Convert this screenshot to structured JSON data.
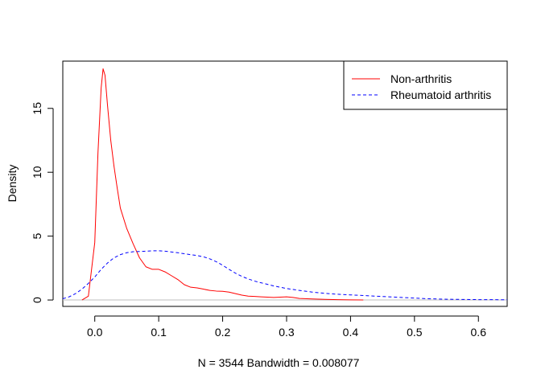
{
  "chart_data": {
    "type": "line",
    "title": "",
    "xlabel": "N = 3544   Bandwidth = 0.008077",
    "ylabel": "Density",
    "xlim": [
      -0.05,
      0.645
    ],
    "ylim": [
      -0.5,
      18.7
    ],
    "xticks": [
      0.0,
      0.1,
      0.2,
      0.3,
      0.4,
      0.5,
      0.6
    ],
    "xtick_labels": [
      "0.0",
      "0.1",
      "0.2",
      "0.3",
      "0.4",
      "0.5",
      "0.6"
    ],
    "yticks": [
      0,
      5,
      10,
      15
    ],
    "ytick_labels": [
      "0",
      "5",
      "10",
      "15"
    ],
    "grid": false,
    "baseline": 0,
    "baseline_color": "#bebebe",
    "legend_position": "top-right",
    "series": [
      {
        "name": "Non-arthritis",
        "color": "#ff0000",
        "dash": "solid",
        "x": [
          -0.02,
          -0.01,
          0.0,
          0.005,
          0.01,
          0.013,
          0.016,
          0.02,
          0.025,
          0.03,
          0.035,
          0.04,
          0.05,
          0.06,
          0.07,
          0.08,
          0.09,
          0.1,
          0.11,
          0.12,
          0.13,
          0.14,
          0.15,
          0.16,
          0.17,
          0.18,
          0.19,
          0.2,
          0.21,
          0.22,
          0.23,
          0.24,
          0.25,
          0.26,
          0.27,
          0.28,
          0.29,
          0.3,
          0.31,
          0.32,
          0.34,
          0.36,
          0.38,
          0.4,
          0.42
        ],
        "y": [
          0.0,
          0.3,
          4.5,
          11.5,
          16.6,
          18.1,
          17.6,
          15.2,
          12.5,
          10.5,
          8.8,
          7.2,
          5.6,
          4.4,
          3.3,
          2.6,
          2.4,
          2.4,
          2.2,
          1.9,
          1.6,
          1.2,
          1.0,
          0.95,
          0.85,
          0.75,
          0.7,
          0.68,
          0.62,
          0.5,
          0.38,
          0.3,
          0.28,
          0.25,
          0.22,
          0.2,
          0.22,
          0.25,
          0.2,
          0.12,
          0.08,
          0.05,
          0.03,
          0.01,
          0.0
        ]
      },
      {
        "name": "Rheumatoid arthritis",
        "color": "#0000ff",
        "dash": "dashed",
        "x": [
          -0.05,
          -0.04,
          -0.03,
          -0.02,
          -0.01,
          0.0,
          0.01,
          0.02,
          0.03,
          0.04,
          0.05,
          0.06,
          0.07,
          0.08,
          0.09,
          0.1,
          0.11,
          0.12,
          0.13,
          0.14,
          0.15,
          0.16,
          0.17,
          0.18,
          0.19,
          0.2,
          0.21,
          0.22,
          0.23,
          0.24,
          0.25,
          0.26,
          0.28,
          0.3,
          0.32,
          0.34,
          0.36,
          0.38,
          0.4,
          0.42,
          0.44,
          0.46,
          0.48,
          0.5,
          0.52,
          0.55,
          0.6,
          0.645
        ],
        "y": [
          0.1,
          0.25,
          0.5,
          0.85,
          1.3,
          1.8,
          2.4,
          2.9,
          3.3,
          3.55,
          3.7,
          3.78,
          3.8,
          3.82,
          3.85,
          3.85,
          3.82,
          3.76,
          3.7,
          3.62,
          3.55,
          3.48,
          3.38,
          3.22,
          3.0,
          2.72,
          2.4,
          2.1,
          1.85,
          1.65,
          1.48,
          1.35,
          1.1,
          0.9,
          0.75,
          0.62,
          0.52,
          0.45,
          0.4,
          0.35,
          0.3,
          0.25,
          0.2,
          0.15,
          0.1,
          0.06,
          0.03,
          0.02
        ]
      }
    ]
  }
}
